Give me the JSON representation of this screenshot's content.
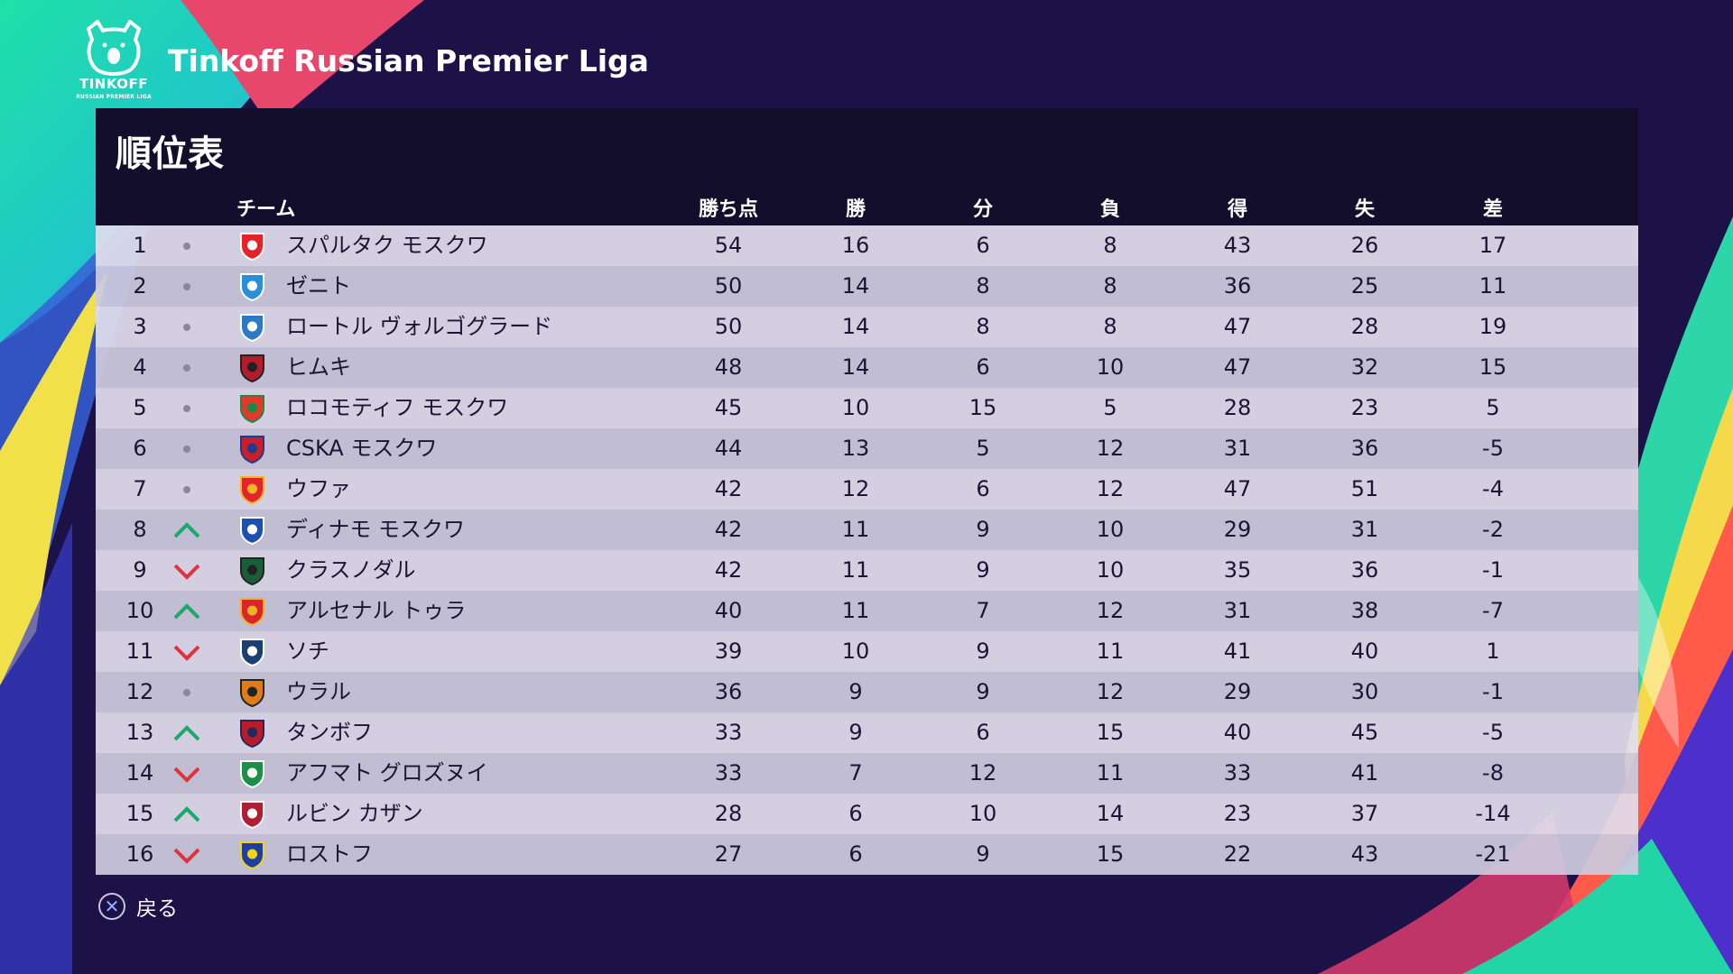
{
  "header": {
    "logo_word": "TINKOFF",
    "logo_subtitle": "RUSSIAN PREMIER LIGA",
    "league_title": "Tinkoff Russian Premier Liga"
  },
  "panel": {
    "title": "順位表"
  },
  "columns": {
    "team": "チーム",
    "points": "勝ち点",
    "wins": "勝",
    "draws": "分",
    "losses": "負",
    "goals_for": "得",
    "goals_against": "失",
    "goal_diff": "差"
  },
  "colors": {
    "up": "#1aa86b",
    "down": "#e0323c",
    "same": "#8a8799"
  },
  "rows": [
    {
      "rank": "1",
      "trend": "same",
      "crest": "spartak-crest-icon",
      "team": "スパルタク モスクワ",
      "points": "54",
      "wins": "16",
      "draws": "6",
      "losses": "8",
      "gf": "43",
      "ga": "26",
      "gd": "17"
    },
    {
      "rank": "2",
      "trend": "same",
      "crest": "zenit-crest-icon",
      "team": "ゼニト",
      "points": "50",
      "wins": "14",
      "draws": "8",
      "losses": "8",
      "gf": "36",
      "ga": "25",
      "gd": "11"
    },
    {
      "rank": "3",
      "trend": "same",
      "crest": "rotor-crest-icon",
      "team": "ロートル ヴォルゴグラード",
      "points": "50",
      "wins": "14",
      "draws": "8",
      "losses": "8",
      "gf": "47",
      "ga": "28",
      "gd": "19"
    },
    {
      "rank": "4",
      "trend": "same",
      "crest": "khimki-crest-icon",
      "team": "ヒムキ",
      "points": "48",
      "wins": "14",
      "draws": "6",
      "losses": "10",
      "gf": "47",
      "ga": "32",
      "gd": "15"
    },
    {
      "rank": "5",
      "trend": "same",
      "crest": "lokomotiv-crest-icon",
      "team": "ロコモティフ モスクワ",
      "points": "45",
      "wins": "10",
      "draws": "15",
      "losses": "5",
      "gf": "28",
      "ga": "23",
      "gd": "5"
    },
    {
      "rank": "6",
      "trend": "same",
      "crest": "cska-crest-icon",
      "team": "CSKA モスクワ",
      "points": "44",
      "wins": "13",
      "draws": "5",
      "losses": "12",
      "gf": "31",
      "ga": "36",
      "gd": "-5"
    },
    {
      "rank": "7",
      "trend": "same",
      "crest": "ufa-crest-icon",
      "team": "ウファ",
      "points": "42",
      "wins": "12",
      "draws": "6",
      "losses": "12",
      "gf": "47",
      "ga": "51",
      "gd": "-4"
    },
    {
      "rank": "8",
      "trend": "up",
      "crest": "dynamo-crest-icon",
      "team": "ディナモ モスクワ",
      "points": "42",
      "wins": "11",
      "draws": "9",
      "losses": "10",
      "gf": "29",
      "ga": "31",
      "gd": "-2"
    },
    {
      "rank": "9",
      "trend": "down",
      "crest": "krasnodar-crest-icon",
      "team": "クラスノダル",
      "points": "42",
      "wins": "11",
      "draws": "9",
      "losses": "10",
      "gf": "35",
      "ga": "36",
      "gd": "-1"
    },
    {
      "rank": "10",
      "trend": "up",
      "crest": "arsenal-tula-crest-icon",
      "team": "アルセナル トゥラ",
      "points": "40",
      "wins": "11",
      "draws": "7",
      "losses": "12",
      "gf": "31",
      "ga": "38",
      "gd": "-7"
    },
    {
      "rank": "11",
      "trend": "down",
      "crest": "sochi-crest-icon",
      "team": "ソチ",
      "points": "39",
      "wins": "10",
      "draws": "9",
      "losses": "11",
      "gf": "41",
      "ga": "40",
      "gd": "1"
    },
    {
      "rank": "12",
      "trend": "same",
      "crest": "ural-crest-icon",
      "team": "ウラル",
      "points": "36",
      "wins": "9",
      "draws": "9",
      "losses": "12",
      "gf": "29",
      "ga": "30",
      "gd": "-1"
    },
    {
      "rank": "13",
      "trend": "up",
      "crest": "tambov-crest-icon",
      "team": "タンボフ",
      "points": "33",
      "wins": "9",
      "draws": "6",
      "losses": "15",
      "gf": "40",
      "ga": "45",
      "gd": "-5"
    },
    {
      "rank": "14",
      "trend": "down",
      "crest": "akhmat-crest-icon",
      "team": "アフマト グロズヌイ",
      "points": "33",
      "wins": "7",
      "draws": "12",
      "losses": "11",
      "gf": "33",
      "ga": "41",
      "gd": "-8"
    },
    {
      "rank": "15",
      "trend": "up",
      "crest": "rubin-crest-icon",
      "team": "ルビン カザン",
      "points": "28",
      "wins": "6",
      "draws": "10",
      "losses": "14",
      "gf": "23",
      "ga": "37",
      "gd": "-14"
    },
    {
      "rank": "16",
      "trend": "down",
      "crest": "rostov-crest-icon",
      "team": "ロストフ",
      "points": "27",
      "wins": "6",
      "draws": "9",
      "losses": "15",
      "gf": "22",
      "ga": "43",
      "gd": "-21"
    }
  ],
  "footer": {
    "back_label": "戻る",
    "back_button_icon": "cross-button-icon"
  }
}
